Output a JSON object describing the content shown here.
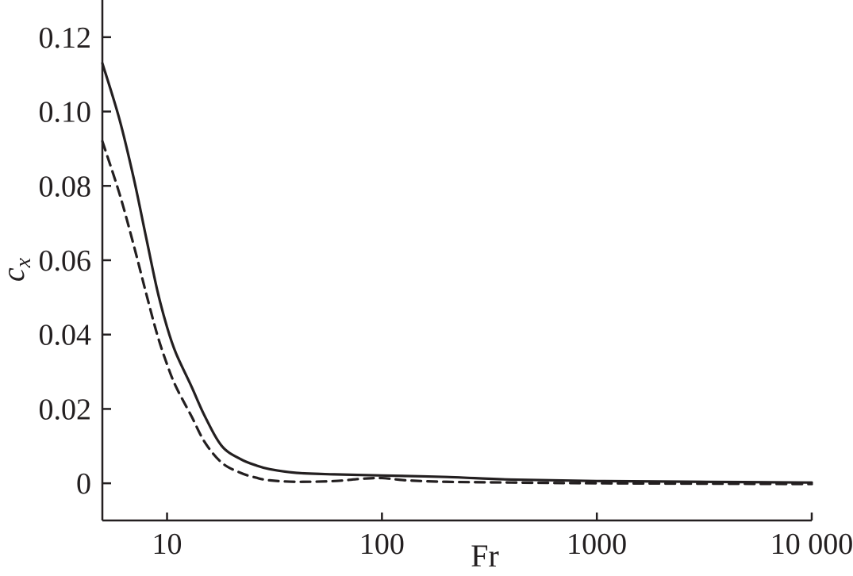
{
  "chart_data": {
    "type": "line",
    "title": "",
    "xlabel": "Fr",
    "ylabel_main": "c",
    "ylabel_sub": "x",
    "x_scale": "log",
    "xlim": [
      5,
      10000
    ],
    "ylim": [
      -0.01,
      0.13
    ],
    "x_ticks": [
      {
        "value": 10,
        "label": "10"
      },
      {
        "value": 100,
        "label": "100"
      },
      {
        "value": 1000,
        "label": "1000"
      },
      {
        "value": 10000,
        "label": "10 000"
      }
    ],
    "y_ticks": [
      {
        "value": 0,
        "label": "0"
      },
      {
        "value": 0.02,
        "label": "0.02"
      },
      {
        "value": 0.04,
        "label": "0.04"
      },
      {
        "value": 0.06,
        "label": "0.06"
      },
      {
        "value": 0.08,
        "label": "0.08"
      },
      {
        "value": 0.1,
        "label": "0.10"
      },
      {
        "value": 0.12,
        "label": "0.12"
      }
    ],
    "grid": false,
    "legend": "none",
    "series": [
      {
        "style": "solid",
        "color": "#231f20",
        "points": [
          [
            5,
            0.113
          ],
          [
            6,
            0.098
          ],
          [
            7,
            0.082
          ],
          [
            8,
            0.066
          ],
          [
            9,
            0.052
          ],
          [
            10,
            0.042
          ],
          [
            11,
            0.035
          ],
          [
            13,
            0.026
          ],
          [
            15,
            0.018
          ],
          [
            18,
            0.01
          ],
          [
            22,
            0.0065
          ],
          [
            26,
            0.0048
          ],
          [
            30,
            0.0038
          ],
          [
            40,
            0.0028
          ],
          [
            60,
            0.0024
          ],
          [
            100,
            0.0021
          ],
          [
            200,
            0.0017
          ],
          [
            400,
            0.001
          ],
          [
            1000,
            0.0006
          ],
          [
            3000,
            0.0004
          ],
          [
            10000,
            0.0002
          ]
        ]
      },
      {
        "style": "dashed",
        "color": "#231f20",
        "points": [
          [
            5,
            0.092
          ],
          [
            6,
            0.078
          ],
          [
            7,
            0.064
          ],
          [
            8,
            0.051
          ],
          [
            9,
            0.04
          ],
          [
            10,
            0.032
          ],
          [
            11,
            0.026
          ],
          [
            13,
            0.018
          ],
          [
            15,
            0.011
          ],
          [
            18,
            0.0055
          ],
          [
            22,
            0.0028
          ],
          [
            26,
            0.0015
          ],
          [
            30,
            0.0008
          ],
          [
            40,
            0.0004
          ],
          [
            60,
            0.0006
          ],
          [
            80,
            0.0012
          ],
          [
            100,
            0.0014
          ],
          [
            130,
            0.0008
          ],
          [
            200,
            0.0004
          ],
          [
            400,
            0.0002
          ],
          [
            1000,
            0.0
          ],
          [
            3000,
            -0.0001
          ],
          [
            10000,
            -0.0002
          ]
        ]
      }
    ]
  }
}
